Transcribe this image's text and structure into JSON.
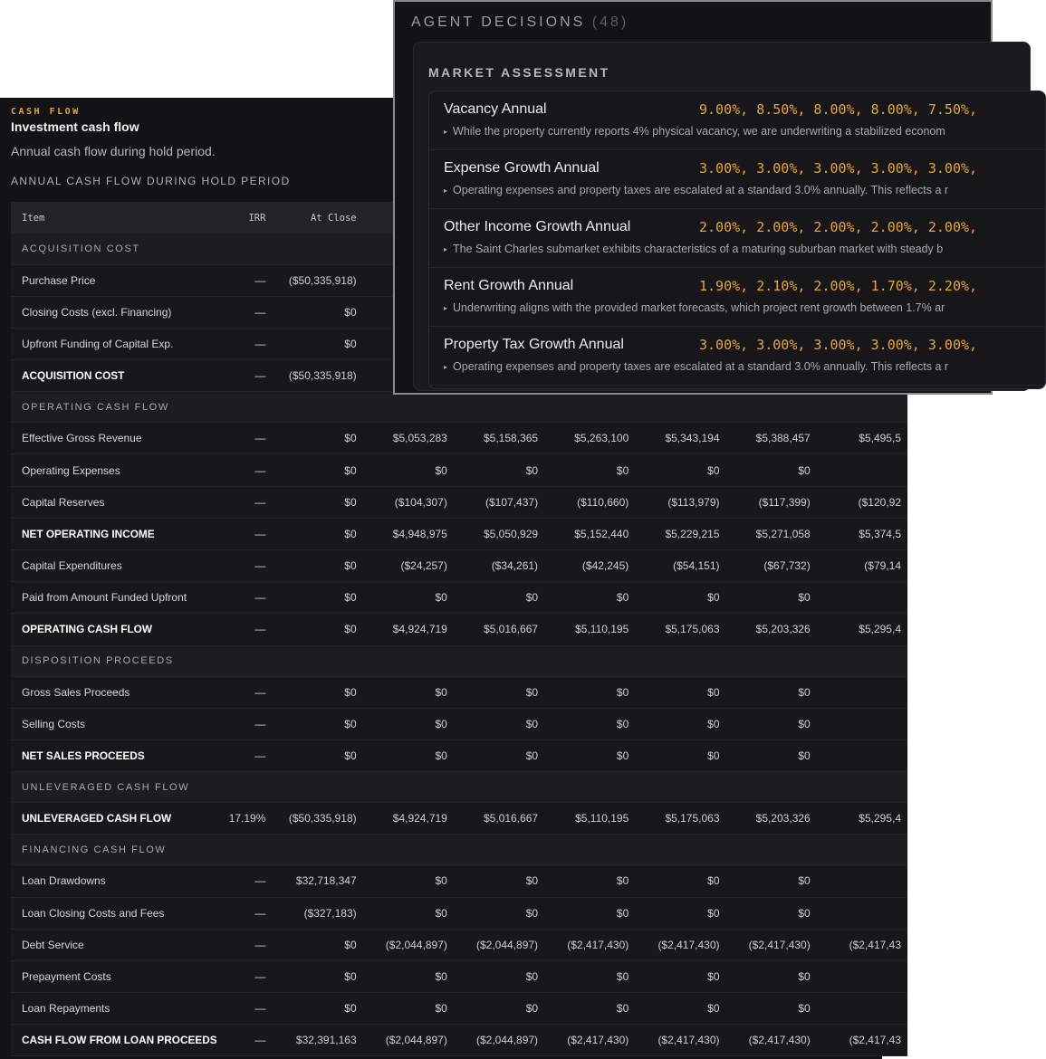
{
  "cash_flow": {
    "eyebrow": "CASH FLOW",
    "title": "Investment cash flow",
    "description": "Annual cash flow during hold period.",
    "subheading": "ANNUAL CASH FLOW DURING HOLD PERIOD",
    "columns": [
      "Item",
      "IRR",
      "At Close",
      "",
      "",
      "",
      "",
      "",
      ""
    ],
    "rows": [
      {
        "kind": "section",
        "label": "ACQUISITION COST"
      },
      {
        "kind": "row",
        "cells": [
          "Purchase Price",
          "—",
          "($50,335,918)",
          "",
          "",
          "",
          "",
          "",
          ""
        ]
      },
      {
        "kind": "row",
        "cells": [
          "Closing Costs (excl. Financing)",
          "—",
          "$0",
          "",
          "",
          "",
          "",
          "",
          ""
        ]
      },
      {
        "kind": "row",
        "cells": [
          "Upfront Funding of Capital Exp.",
          "—",
          "$0",
          "",
          "",
          "",
          "",
          "",
          ""
        ]
      },
      {
        "kind": "total",
        "cells": [
          "ACQUISITION COST",
          "—",
          "($50,335,918)",
          "",
          "",
          "",
          "",
          "",
          ""
        ]
      },
      {
        "kind": "section",
        "label": "OPERATING CASH FLOW"
      },
      {
        "kind": "row",
        "cells": [
          "Effective Gross Revenue",
          "—",
          "$0",
          "$5,053,283",
          "$5,158,365",
          "$5,263,100",
          "$5,343,194",
          "$5,388,457",
          "$5,495,5"
        ]
      },
      {
        "kind": "row",
        "cells": [
          "Operating Expenses",
          "—",
          "$0",
          "$0",
          "$0",
          "$0",
          "$0",
          "$0",
          ""
        ]
      },
      {
        "kind": "row",
        "cells": [
          "Capital Reserves",
          "—",
          "$0",
          "($104,307)",
          "($107,437)",
          "($110,660)",
          "($113,979)",
          "($117,399)",
          "($120,92"
        ]
      },
      {
        "kind": "total",
        "cells": [
          "NET OPERATING INCOME",
          "—",
          "$0",
          "$4,948,975",
          "$5,050,929",
          "$5,152,440",
          "$5,229,215",
          "$5,271,058",
          "$5,374,5"
        ]
      },
      {
        "kind": "row",
        "cells": [
          "Capital Expenditures",
          "—",
          "$0",
          "($24,257)",
          "($34,261)",
          "($42,245)",
          "($54,151)",
          "($67,732)",
          "($79,14"
        ]
      },
      {
        "kind": "row",
        "cells": [
          "Paid from Amount Funded Upfront",
          "—",
          "$0",
          "$0",
          "$0",
          "$0",
          "$0",
          "$0",
          ""
        ]
      },
      {
        "kind": "total",
        "cells": [
          "OPERATING CASH FLOW",
          "—",
          "$0",
          "$4,924,719",
          "$5,016,667",
          "$5,110,195",
          "$5,175,063",
          "$5,203,326",
          "$5,295,4"
        ]
      },
      {
        "kind": "section",
        "label": "DISPOSITION PROCEEDS"
      },
      {
        "kind": "row",
        "cells": [
          "Gross Sales Proceeds",
          "—",
          "$0",
          "$0",
          "$0",
          "$0",
          "$0",
          "$0",
          ""
        ]
      },
      {
        "kind": "row",
        "cells": [
          "Selling Costs",
          "—",
          "$0",
          "$0",
          "$0",
          "$0",
          "$0",
          "$0",
          ""
        ]
      },
      {
        "kind": "total",
        "cells": [
          "NET SALES PROCEEDS",
          "—",
          "$0",
          "$0",
          "$0",
          "$0",
          "$0",
          "$0",
          ""
        ]
      },
      {
        "kind": "section",
        "label": "UNLEVERAGED CASH FLOW"
      },
      {
        "kind": "total",
        "cells": [
          "UNLEVERAGED CASH FLOW",
          "17.19%",
          "($50,335,918)",
          "$4,924,719",
          "$5,016,667",
          "$5,110,195",
          "$5,175,063",
          "$5,203,326",
          "$5,295,4"
        ]
      },
      {
        "kind": "section",
        "label": "FINANCING CASH FLOW"
      },
      {
        "kind": "row",
        "cells": [
          "Loan Drawdowns",
          "—",
          "$32,718,347",
          "$0",
          "$0",
          "$0",
          "$0",
          "$0",
          ""
        ]
      },
      {
        "kind": "row",
        "cells": [
          "Loan Closing Costs and Fees",
          "—",
          "($327,183)",
          "$0",
          "$0",
          "$0",
          "$0",
          "$0",
          ""
        ]
      },
      {
        "kind": "row",
        "cells": [
          "Debt Service",
          "—",
          "$0",
          "($2,044,897)",
          "($2,044,897)",
          "($2,417,430)",
          "($2,417,430)",
          "($2,417,430)",
          "($2,417,43"
        ]
      },
      {
        "kind": "row",
        "cells": [
          "Prepayment Costs",
          "—",
          "$0",
          "$0",
          "$0",
          "$0",
          "$0",
          "$0",
          ""
        ]
      },
      {
        "kind": "row",
        "cells": [
          "Loan Repayments",
          "—",
          "$0",
          "$0",
          "$0",
          "$0",
          "$0",
          "$0",
          ""
        ]
      },
      {
        "kind": "total",
        "cells": [
          "CASH FLOW FROM LOAN PROCEEDS",
          "—",
          "$32,391,163",
          "($2,044,897)",
          "($2,044,897)",
          "($2,417,430)",
          "($2,417,430)",
          "($2,417,430)",
          "($2,417,43"
        ]
      }
    ]
  },
  "agent_decisions": {
    "title": "AGENT DECISIONS",
    "count": "(48)",
    "group_title": "MARKET ASSESSMENT",
    "items": [
      {
        "name": "Vacancy Annual",
        "values": "9.00%, 8.50%, 8.00%, 8.00%, 7.50%,",
        "reason": "While the property currently reports 4% physical vacancy, we are underwriting a stabilized econom"
      },
      {
        "name": "Expense Growth Annual",
        "values": "3.00%, 3.00%, 3.00%, 3.00%, 3.00%,",
        "reason": "Operating expenses and property taxes are escalated at a standard 3.0% annually. This reflects a r"
      },
      {
        "name": "Other Income Growth Annual",
        "values": "2.00%, 2.00%, 2.00%, 2.00%, 2.00%,",
        "reason": "The Saint Charles submarket exhibits characteristics of a maturing suburban market with steady b"
      },
      {
        "name": "Rent Growth Annual",
        "values": "1.90%, 2.10%, 2.00%, 1.70%, 2.20%,",
        "reason": "Underwriting aligns with the provided market forecasts, which project rent growth between 1.7% ar"
      },
      {
        "name": "Property Tax Growth Annual",
        "values": "3.00%, 3.00%, 3.00%, 3.00%, 3.00%,",
        "reason": "Operating expenses and property taxes are escalated at a standard 3.0% annually. This reflects a r"
      }
    ]
  }
}
